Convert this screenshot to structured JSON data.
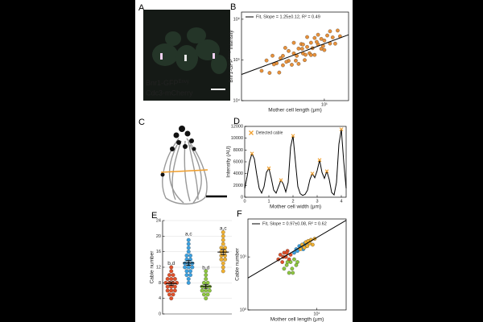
{
  "panel_a": {
    "panel": "A",
    "labels": [
      {
        "text": "Bnr1-GFP",
        "superscript": "Envy",
        "color": "#4cb050"
      },
      {
        "text": "Cdc3-mCherry",
        "color": "#b060c8"
      }
    ]
  },
  "panel_c": {
    "panel": "C"
  },
  "chart_data": [
    {
      "panel": "B",
      "type": "scatter",
      "xlog": true,
      "ylog": true,
      "xlabel": "Mother cell length (μm)",
      "ylabel": {
        "text": "Bnr1-GFP",
        "superscript": "Envy",
        "suffix": " Intensity"
      },
      "xlim": [
        2.5,
        15
      ],
      "ylim": [
        10000,
        1500000
      ],
      "xticks": [
        {
          "value": 10,
          "label": "10¹"
        }
      ],
      "yticks": [
        {
          "value": 10000,
          "label": "10⁴"
        },
        {
          "value": 100000,
          "label": "10⁵"
        },
        {
          "value": 1000000,
          "label": "10⁶"
        }
      ],
      "series": [
        {
          "color": "#e8913a",
          "x": [
            3.5,
            3.8,
            4,
            4.2,
            4.5,
            4.7,
            5,
            5,
            5.2,
            5.5,
            5.5,
            5.8,
            6,
            6,
            6.2,
            6.5,
            6.5,
            6.8,
            7,
            7,
            7.2,
            7.5,
            7.5,
            7.8,
            8,
            8,
            8.2,
            8.5,
            8.5,
            9,
            9,
            9.5,
            9.5,
            10,
            10,
            10.5,
            11,
            11,
            11.5,
            12,
            12.5,
            13,
            4.8,
            6.3,
            7.3,
            8.8,
            5.3,
            6.9,
            9.8,
            4.3
          ],
          "values": [
            54000,
            97000,
            48000,
            127000,
            83000,
            49000,
            126000,
            74000,
            198000,
            95000,
            166000,
            76000,
            145000,
            264000,
            96000,
            190000,
            80000,
            246000,
            144000,
            240000,
            99000,
            209000,
            365000,
            146000,
            265000,
            132000,
            195000,
            347000,
            133000,
            241000,
            416000,
            188000,
            329000,
            300000,
            175000,
            399000,
            253000,
            506000,
            358000,
            251000,
            528000,
            382000,
            110000,
            126000,
            134000,
            278000,
            90000,
            188000,
            220000,
            78000
          ]
        }
      ],
      "fit": {
        "name": "Fit, Slope = 1.25±0.12, R² = 0.49",
        "color": "#000000",
        "x": [
          2.5,
          15
        ],
        "y": [
          44000,
          415000
        ]
      }
    },
    {
      "panel": "D",
      "type": "line",
      "xlabel": "Mother cell width (μm)",
      "ylabel": "Intensity (AU)",
      "xlim": [
        0,
        4.2
      ],
      "ylim": [
        0,
        12000
      ],
      "xticks": [
        0,
        1,
        2,
        3,
        4
      ],
      "yticks": [
        0,
        2000,
        4000,
        6000,
        8000,
        10000,
        12000
      ],
      "x": [
        0,
        0.1,
        0.2,
        0.3,
        0.4,
        0.5,
        0.6,
        0.7,
        0.8,
        0.9,
        1,
        1.1,
        1.2,
        1.3,
        1.4,
        1.5,
        1.6,
        1.7,
        1.8,
        1.9,
        2,
        2.1,
        2.2,
        2.3,
        2.4,
        2.5,
        2.6,
        2.7,
        2.8,
        2.9,
        3,
        3.1,
        3.2,
        3.3,
        3.4,
        3.5,
        3.6,
        3.7,
        3.8,
        3.9,
        4,
        4.1,
        4.2
      ],
      "series": [
        {
          "color": "#000000",
          "values": [
            1500,
            3500,
            6000,
            7400,
            6500,
            3800,
            1500,
            700,
            1800,
            4200,
            4900,
            3200,
            1200,
            700,
            1800,
            2900,
            2200,
            900,
            2500,
            8500,
            10400,
            6000,
            1800,
            600,
            300,
            500,
            1200,
            3000,
            4000,
            3300,
            4500,
            6300,
            4200,
            3200,
            4400,
            3000,
            800,
            400,
            2500,
            9000,
            11500,
            6000,
            1500
          ]
        },
        {
          "name": "Detected cable",
          "color": "#f0a030",
          "marker": "x",
          "x": [
            0.3,
            1,
            1.5,
            2,
            2.8,
            3.1,
            3.4,
            4
          ],
          "values": [
            7400,
            4900,
            2900,
            10400,
            4000,
            6300,
            4400,
            11500
          ]
        }
      ]
    },
    {
      "panel": "E",
      "type": "strip",
      "grid": true,
      "ylabel": "Cable number",
      "ylim": [
        0,
        24
      ],
      "yticks": [
        0,
        4,
        8,
        12,
        16,
        20,
        24
      ],
      "series": [
        {
          "color": "#e0502a",
          "values": [
            4,
            5,
            5,
            6,
            6,
            6,
            7,
            7,
            7,
            8,
            8,
            8,
            8,
            9,
            9,
            9,
            10,
            10,
            11,
            12
          ],
          "mean": 7.8,
          "sem": 0.45
        },
        {
          "color": "#3aa0e0",
          "values": [
            8,
            9,
            10,
            10,
            11,
            11,
            12,
            12,
            12,
            13,
            13,
            13,
            14,
            14,
            15,
            15,
            16,
            17,
            18,
            19
          ],
          "mean": 13.1,
          "sem": 0.6
        },
        {
          "color": "#8dc63f",
          "values": [
            4,
            5,
            5,
            6,
            6,
            6,
            7,
            7,
            7,
            8,
            8,
            9,
            10,
            11
          ],
          "mean": 7.1,
          "sem": 0.5
        },
        {
          "color": "#f0b030",
          "values": [
            11,
            12,
            13,
            14,
            14,
            15,
            15,
            16,
            16,
            17,
            17,
            18,
            19,
            20,
            21
          ],
          "mean": 15.9,
          "sem": 0.7
        }
      ],
      "annotations": [
        {
          "text": "b,d",
          "x": 0,
          "y": 13
        },
        {
          "text": "a,c",
          "x": 1,
          "y": 20.5
        },
        {
          "text": "b,d",
          "x": 2,
          "y": 11.8
        },
        {
          "text": "a,c",
          "x": 3,
          "y": 22
        }
      ]
    },
    {
      "panel": "F",
      "type": "scatter",
      "xlog": true,
      "ylog": true,
      "xlabel": "Mother cell length (μm)",
      "ylabel": "Cable number",
      "xlim": [
        1.6,
        22
      ],
      "ylim": [
        1,
        52
      ],
      "xticks": [
        {
          "value": 10,
          "label": "10¹"
        }
      ],
      "yticks": [
        {
          "value": 1,
          "label": "10⁰"
        },
        {
          "value": 10,
          "label": "10¹"
        }
      ],
      "series": [
        {
          "color": "#e0502a",
          "x": [
            3.6,
            3.8,
            4,
            4.2,
            4.4,
            4.6,
            4.8,
            5,
            4.1,
            4.5
          ],
          "values": [
            9,
            11,
            8,
            12,
            10,
            13,
            9,
            11,
            10,
            12
          ]
        },
        {
          "color": "#8dc63f",
          "x": [
            4.2,
            4.5,
            4.8,
            5,
            5.2,
            5.5,
            5.8,
            4.6,
            5.3,
            6
          ],
          "values": [
            6,
            7,
            5,
            8,
            6,
            9,
            7,
            8,
            5,
            8
          ]
        },
        {
          "color": "#3aa0e0",
          "x": [
            5.5,
            5.8,
            6,
            6.3,
            6.5,
            6.8,
            7,
            7.3,
            7.6,
            8
          ],
          "values": [
            12,
            14,
            13,
            16,
            15,
            17,
            14,
            18,
            16,
            19
          ]
        },
        {
          "color": "#f0b030",
          "x": [
            6.5,
            6.8,
            7.2,
            7.5,
            7.8,
            8,
            8.3,
            8.6,
            9,
            9.5
          ],
          "values": [
            14,
            17,
            15,
            19,
            16,
            20,
            18,
            21,
            17,
            22
          ]
        }
      ],
      "fit": {
        "name": "Fit, Slope = 0.97±0.08, R² = 0.62",
        "color": "#000000",
        "x": [
          1.6,
          22
        ],
        "y": [
          4,
          49
        ]
      }
    }
  ]
}
